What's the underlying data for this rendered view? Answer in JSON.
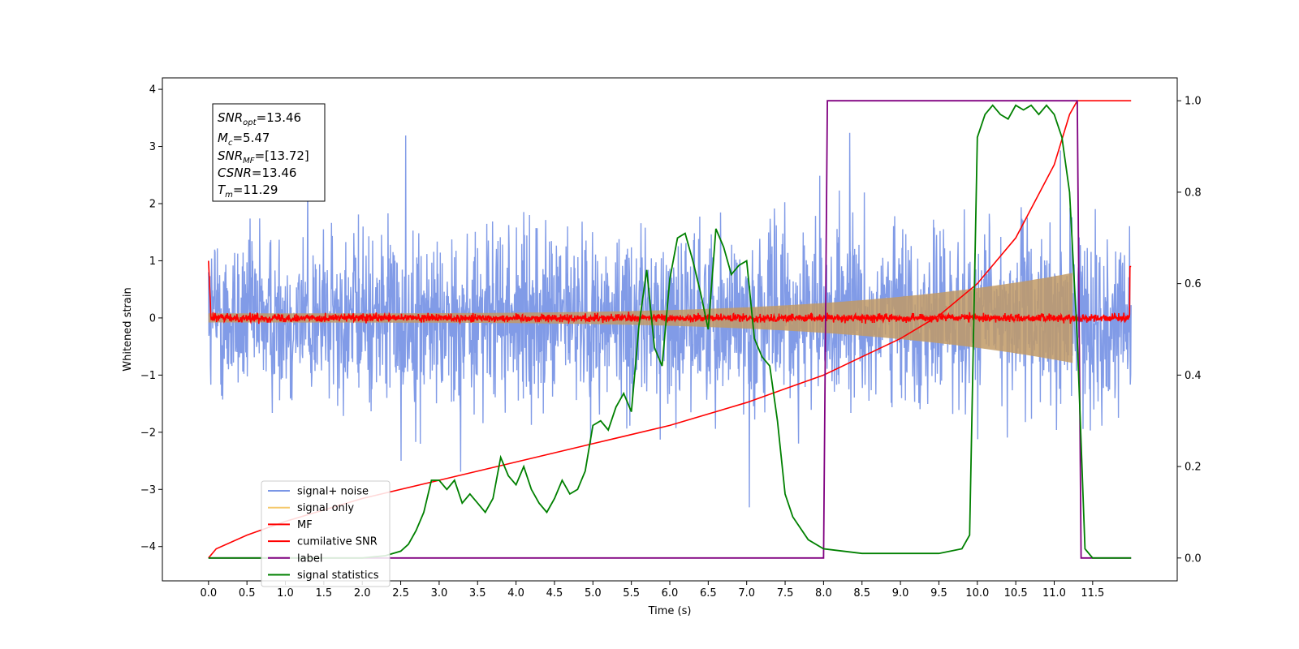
{
  "chart_data": {
    "type": "line",
    "title": "",
    "xlabel": "Time (s)",
    "ylabel": "Whitened strain",
    "xlim": [
      -0.6,
      12.6
    ],
    "ylim": [
      -4.6,
      4.2
    ],
    "y2lim": [
      -0.05,
      1.05
    ],
    "x_ticks": [
      0.0,
      0.5,
      1.0,
      1.5,
      2.0,
      2.5,
      3.0,
      3.5,
      4.0,
      4.5,
      5.0,
      5.5,
      6.0,
      6.5,
      7.0,
      7.5,
      8.0,
      8.5,
      9.0,
      9.5,
      10.0,
      10.5,
      11.0,
      11.5
    ],
    "x_tick_labels": [
      "0.0",
      "0.5",
      "1.0",
      "1.5",
      "2.0",
      "2.5",
      "3.0",
      "3.5",
      "4.0",
      "4.5",
      "5.0",
      "5.5",
      "6.0",
      "6.5",
      "7.0",
      "7.5",
      "8.0",
      "8.5",
      "9.0",
      "9.5",
      "10.0",
      "10.5",
      "11.0",
      "11.5"
    ],
    "y_ticks": [
      -4,
      -3,
      -2,
      -1,
      0,
      1,
      2,
      3,
      4
    ],
    "y_tick_labels": [
      "−4",
      "−3",
      "−2",
      "−1",
      "0",
      "1",
      "2",
      "3",
      "4"
    ],
    "y2_ticks": [
      0.0,
      0.2,
      0.4,
      0.6,
      0.8,
      1.0
    ],
    "y2_tick_labels": [
      "0.0",
      "0.2",
      "0.4",
      "0.6",
      "0.8",
      "1.0"
    ],
    "grid": false,
    "legend_position": "lower-left",
    "info_box": {
      "line1_main": "SNR",
      "line1_sub": "opt",
      "line1_rest": "=13.46",
      "line2_main": "M",
      "line2_sub": "c",
      "line2_rest": "=5.47",
      "line3_main": "SNR",
      "line3_sub": "MF",
      "line3_rest": "=[13.72]",
      "line4_main": "CSNR",
      "line4_rest": "=13.46",
      "line5_main": "T",
      "line5_sub": "m",
      "line5_rest": "=11.29"
    },
    "series": [
      {
        "name": "signal+ noise",
        "color": "#7a96e6",
        "axis": "left",
        "kind": "noise",
        "x_range": [
          0,
          12.0
        ],
        "amplitude": 2.6
      },
      {
        "name": "signal only",
        "color": "#f5c86b",
        "axis": "left",
        "kind": "chirp_envelope",
        "x_range": [
          0,
          11.29
        ],
        "end_amplitude": 0.8
      },
      {
        "name": "MF",
        "color": "#ff0000",
        "axis": "left",
        "kind": "noise_small",
        "x_range": [
          0,
          12.0
        ],
        "amplitude": 0.12
      },
      {
        "name": "cumilative SNR",
        "color": "#ff0000",
        "axis": "right",
        "x": [
          0.0,
          0.1,
          0.5,
          1.0,
          2.0,
          3.0,
          4.0,
          5.0,
          6.0,
          7.0,
          7.5,
          8.0,
          8.5,
          9.0,
          9.5,
          10.0,
          10.5,
          11.0,
          11.2,
          11.3,
          12.0
        ],
        "y": [
          0.0,
          0.02,
          0.05,
          0.08,
          0.13,
          0.17,
          0.21,
          0.25,
          0.29,
          0.34,
          0.37,
          0.4,
          0.44,
          0.48,
          0.53,
          0.6,
          0.7,
          0.86,
          0.97,
          1.0,
          1.0
        ]
      },
      {
        "name": "label",
        "color": "#800080",
        "axis": "right",
        "x": [
          0.0,
          8.0,
          8.05,
          11.3,
          11.35,
          12.0
        ],
        "y": [
          0.0,
          0.0,
          1.0,
          1.0,
          0.0,
          0.0
        ]
      },
      {
        "name": "signal statistics",
        "color": "#008000",
        "axis": "right",
        "x": [
          0.0,
          0.5,
          1.0,
          1.5,
          2.0,
          2.3,
          2.5,
          2.6,
          2.7,
          2.8,
          2.9,
          3.0,
          3.1,
          3.2,
          3.3,
          3.4,
          3.5,
          3.6,
          3.7,
          3.8,
          3.9,
          4.0,
          4.1,
          4.2,
          4.3,
          4.4,
          4.5,
          4.6,
          4.7,
          4.8,
          4.9,
          5.0,
          5.1,
          5.2,
          5.3,
          5.4,
          5.5,
          5.6,
          5.7,
          5.8,
          5.9,
          6.0,
          6.1,
          6.2,
          6.3,
          6.4,
          6.5,
          6.6,
          6.7,
          6.8,
          6.9,
          7.0,
          7.1,
          7.2,
          7.3,
          7.4,
          7.5,
          7.6,
          7.8,
          8.0,
          8.5,
          9.0,
          9.5,
          9.8,
          9.9,
          10.0,
          10.1,
          10.2,
          10.3,
          10.4,
          10.5,
          10.6,
          10.7,
          10.8,
          10.9,
          11.0,
          11.1,
          11.2,
          11.3,
          11.4,
          11.5,
          11.6,
          12.0
        ],
        "y": [
          0.0,
          0.0,
          0.0,
          0.0,
          0.0,
          0.005,
          0.015,
          0.03,
          0.06,
          0.1,
          0.17,
          0.17,
          0.15,
          0.17,
          0.12,
          0.14,
          0.12,
          0.1,
          0.13,
          0.22,
          0.18,
          0.16,
          0.2,
          0.15,
          0.12,
          0.1,
          0.13,
          0.17,
          0.14,
          0.15,
          0.19,
          0.29,
          0.3,
          0.28,
          0.33,
          0.36,
          0.32,
          0.51,
          0.63,
          0.46,
          0.42,
          0.61,
          0.7,
          0.71,
          0.65,
          0.58,
          0.5,
          0.72,
          0.68,
          0.62,
          0.64,
          0.65,
          0.48,
          0.44,
          0.42,
          0.3,
          0.14,
          0.09,
          0.04,
          0.02,
          0.01,
          0.01,
          0.01,
          0.02,
          0.05,
          0.92,
          0.97,
          0.99,
          0.97,
          0.96,
          0.99,
          0.98,
          0.99,
          0.97,
          0.99,
          0.97,
          0.92,
          0.8,
          0.48,
          0.02,
          0.0,
          0.0,
          0.0
        ]
      }
    ]
  }
}
